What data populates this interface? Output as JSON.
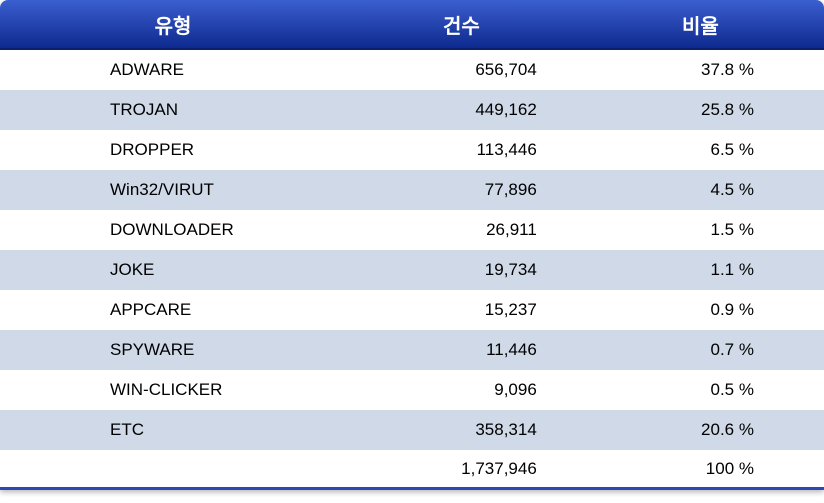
{
  "table": {
    "headers": {
      "type": "유형",
      "count": "건수",
      "ratio": "비율"
    },
    "rows": [
      {
        "type": "ADWARE",
        "count": "656,704",
        "ratio": "37.8 %"
      },
      {
        "type": "TROJAN",
        "count": "449,162",
        "ratio": "25.8 %"
      },
      {
        "type": "DROPPER",
        "count": "113,446",
        "ratio": "6.5 %"
      },
      {
        "type": "Win32/VIRUT",
        "count": "77,896",
        "ratio": "4.5 %"
      },
      {
        "type": "DOWNLOADER",
        "count": "26,911",
        "ratio": "1.5 %"
      },
      {
        "type": "JOKE",
        "count": "19,734",
        "ratio": "1.1 %"
      },
      {
        "type": "APPCARE",
        "count": "15,237",
        "ratio": "0.9 %"
      },
      {
        "type": "SPYWARE",
        "count": "11,446",
        "ratio": "0.7 %"
      },
      {
        "type": "WIN-CLICKER",
        "count": "9,096",
        "ratio": "0.5 %"
      },
      {
        "type": "ETC",
        "count": "358,314",
        "ratio": "20.6 %"
      }
    ],
    "total": {
      "type": "",
      "count": "1,737,946",
      "ratio": "100 %"
    },
    "style": {
      "header_gradient_from": "#3a5fcf",
      "header_gradient_to": "#0e2a8f",
      "header_text_color": "#ffffff",
      "row_odd_bg": "#ffffff",
      "row_even_bg": "#cfd9e7",
      "text_color": "#000000",
      "header_fontsize": 20,
      "body_fontsize": 17,
      "bottom_border_color": "#2a49b5"
    }
  }
}
